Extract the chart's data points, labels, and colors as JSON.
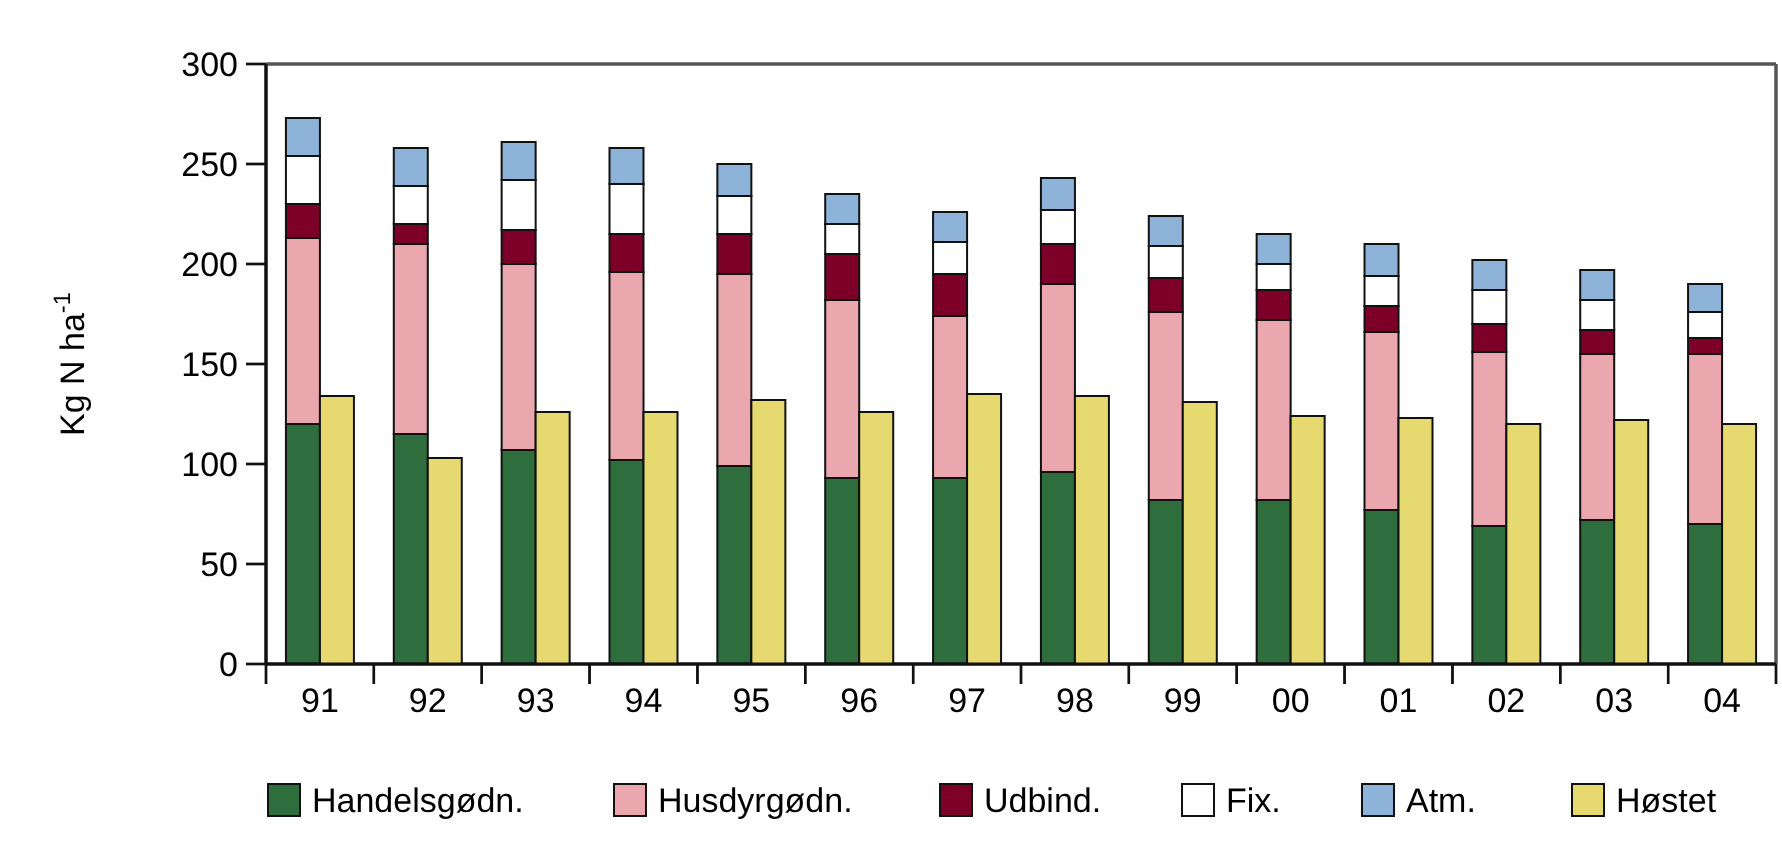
{
  "chart_data": [
    {
      "type": "bar",
      "stacked": true,
      "ylabel": "Kg N ha$^{-1}$",
      "categories": [
        "91",
        "92",
        "93",
        "94",
        "95",
        "96",
        "97",
        "98",
        "99",
        "00",
        "01",
        "02",
        "03",
        "04"
      ],
      "ylim": [
        0,
        300
      ],
      "yticks": [
        0,
        50,
        100,
        150,
        200,
        250,
        300
      ],
      "legend": "bottom",
      "series": [
        {
          "name": "Handelsgødn.",
          "color": "#2e6e3c",
          "values": [
            120,
            115,
            107,
            102,
            99,
            93,
            93,
            96,
            82,
            82,
            77,
            69,
            72,
            70
          ]
        },
        {
          "name": "Husdyrgødn.",
          "color": "#eba7ae",
          "values": [
            93,
            95,
            93,
            94,
            96,
            89,
            81,
            94,
            94,
            90,
            89,
            87,
            83,
            85
          ]
        },
        {
          "name": "Udbind.",
          "color": "#7d0029",
          "values": [
            17,
            10,
            17,
            19,
            20,
            23,
            21,
            20,
            17,
            15,
            13,
            14,
            12,
            8
          ]
        },
        {
          "name": "Fix.",
          "color": "#ffffff",
          "values": [
            24,
            19,
            25,
            25,
            19,
            15,
            16,
            17,
            16,
            13,
            15,
            17,
            15,
            13
          ]
        },
        {
          "name": "Atm.",
          "color": "#8db4d8",
          "values": [
            19,
            19,
            19,
            18,
            16,
            15,
            15,
            16,
            15,
            15,
            16,
            15,
            15,
            14
          ]
        }
      ]
    },
    {
      "type": "bar",
      "categories": [
        null,
        null,
        null,
        null,
        null,
        null,
        null,
        null,
        null,
        null,
        null,
        null,
        null,
        null
      ],
      "ylim": [
        0,
        300
      ],
      "yticks": [
        0,
        50,
        100,
        150,
        200,
        250,
        300
      ],
      "tick_labels": false,
      "legend": "bottom",
      "series": [
        {
          "name": "Høstet",
          "color": "#e6d970",
          "values": [
            134,
            103,
            126,
            126,
            132,
            126,
            135,
            134,
            131,
            124,
            123,
            120,
            122,
            120
          ]
        }
      ]
    }
  ]
}
